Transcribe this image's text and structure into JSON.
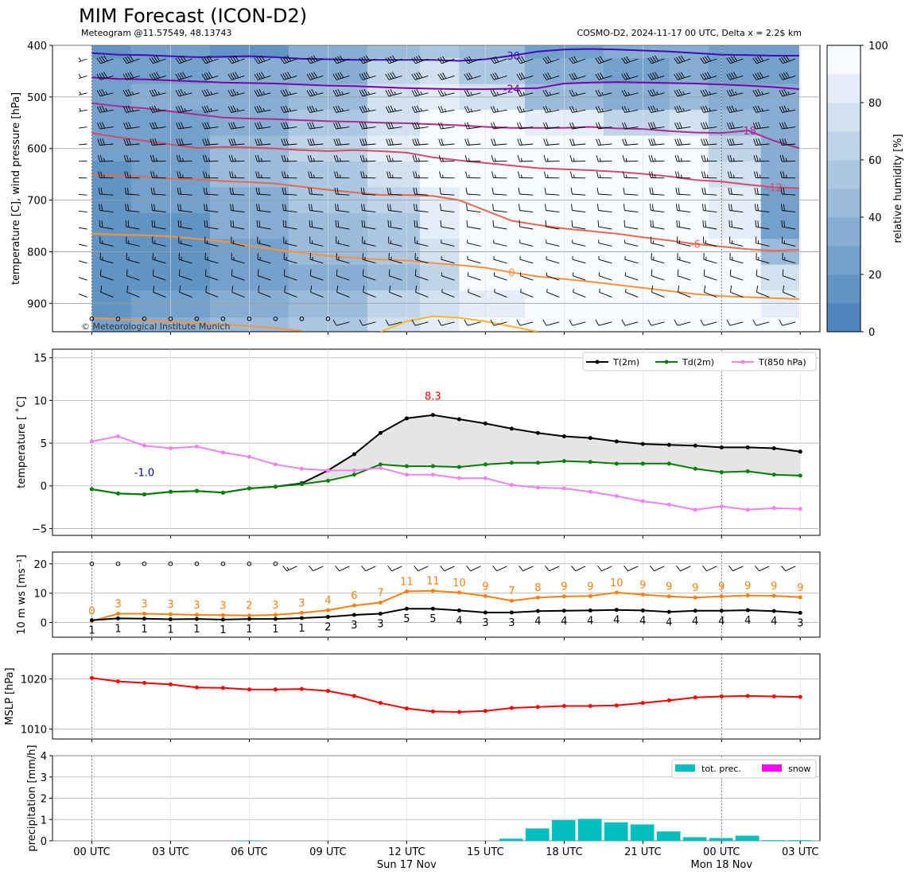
{
  "header": {
    "title": "MIM Forecast (ICON-D2)",
    "subtitle_left": "Meteogram @11.57549, 48.13743",
    "subtitle_right": "COSMO-D2, 2024-11-17 00 UTC, Delta x = 2.2$ km",
    "copyright": "© Meteorological Institute Munich"
  },
  "colors": {
    "rh_dark": "#4f87bc",
    "rh_light": "#f7fbff",
    "t2m": "#000000",
    "td2m": "#008000",
    "t850": "#ee82ee",
    "wind_gust": "#ff7f0e",
    "wind_mean": "#000000",
    "mslp": "#ff0000",
    "tot_prec": "#00bfbf",
    "snow": "#ff00ff",
    "max_label": "#ff0000",
    "min_label": "#0000cd"
  },
  "time_axis": {
    "tick_labels": [
      "00 UTC",
      "03 UTC",
      "06 UTC",
      "09 UTC",
      "12 UTC",
      "15 UTC",
      "18 UTC",
      "21 UTC",
      "00 UTC",
      "03 UTC"
    ],
    "tick_hours": [
      0,
      3,
      6,
      9,
      12,
      15,
      18,
      21,
      24,
      27
    ],
    "day_labels": [
      {
        "hour": 12,
        "text": "Sun 17 Nov"
      },
      {
        "hour": 24,
        "text": "Mon 18 Nov"
      }
    ],
    "range": [
      0,
      27.75
    ]
  },
  "chart_data": [
    {
      "type": "heatmap",
      "id": "cross_section",
      "ylabel": "temperature [C], wind pressure [hPa]",
      "yticks": [
        400,
        500,
        600,
        700,
        800,
        900
      ],
      "ylim": [
        955,
        400
      ],
      "colorbar": {
        "label": "relative humidity [%]",
        "ticks": [
          0,
          20,
          40,
          60,
          80,
          100
        ],
        "range": [
          0,
          100
        ]
      },
      "pressure_levels": [
        400,
        450,
        500,
        550,
        600,
        650,
        700,
        750,
        800,
        850,
        900,
        955
      ],
      "rh_hours": [
        0,
        3,
        6,
        9,
        12,
        13,
        15,
        18,
        21,
        23,
        24,
        27
      ],
      "relative_humidity": [
        [
          15,
          20,
          18,
          30,
          40,
          50,
          40,
          25,
          30,
          35,
          20,
          20
        ],
        [
          20,
          25,
          30,
          35,
          60,
          70,
          55,
          30,
          25,
          30,
          25,
          25
        ],
        [
          25,
          30,
          35,
          45,
          70,
          85,
          75,
          45,
          30,
          40,
          35,
          30
        ],
        [
          20,
          25,
          35,
          50,
          75,
          95,
          90,
          80,
          60,
          75,
          45,
          35
        ],
        [
          20,
          25,
          40,
          60,
          80,
          98,
          95,
          95,
          90,
          95,
          60,
          35
        ],
        [
          15,
          20,
          40,
          55,
          75,
          96,
          98,
          98,
          98,
          98,
          70,
          30
        ],
        [
          15,
          20,
          35,
          50,
          60,
          85,
          98,
          98,
          98,
          98,
          80,
          25
        ],
        [
          10,
          15,
          30,
          45,
          55,
          80,
          98,
          98,
          98,
          98,
          85,
          25
        ],
        [
          10,
          15,
          25,
          40,
          50,
          75,
          95,
          98,
          98,
          98,
          90,
          40
        ],
        [
          10,
          15,
          25,
          35,
          45,
          60,
          90,
          98,
          98,
          98,
          95,
          70
        ],
        [
          15,
          25,
          30,
          40,
          60,
          70,
          85,
          95,
          98,
          98,
          95,
          85
        ],
        [
          25,
          35,
          45,
          55,
          70,
          80,
          90,
          95,
          96,
          95,
          92,
          90
        ]
      ],
      "isotherm_hours": [
        0,
        1,
        2,
        3,
        4,
        5,
        6,
        7,
        8,
        9,
        10,
        11,
        12,
        13,
        14,
        15,
        16,
        17,
        18,
        19,
        20,
        21,
        22,
        23,
        24,
        25,
        26,
        27
      ],
      "isotherms": [
        {
          "label": "-30",
          "color": "#3f0fb7",
          "label_hour": 16,
          "pressure": [
            415,
            418,
            419,
            421,
            423,
            422,
            421,
            423,
            426,
            427,
            428,
            428,
            428,
            428,
            430,
            427,
            420,
            412,
            408,
            407,
            408,
            410,
            412,
            415,
            418,
            419,
            420,
            420
          ]
        },
        {
          "label": "-24",
          "color": "#7e03a8",
          "label_hour": 16,
          "pressure": [
            462,
            465,
            466,
            468,
            470,
            472,
            473,
            474,
            476,
            478,
            479,
            481,
            483,
            484,
            485,
            485,
            484,
            483,
            474,
            472,
            471,
            472,
            473,
            474,
            476,
            478,
            481,
            485
          ]
        },
        {
          "label": "-18",
          "color": "#b02a8f",
          "label_hour": 25,
          "pressure": [
            512,
            518,
            522,
            528,
            534,
            540,
            542,
            543,
            545,
            547,
            548,
            550,
            551,
            553,
            555,
            558,
            560,
            560,
            560,
            558,
            561,
            562,
            566,
            569,
            570,
            565,
            585,
            600
          ]
        },
        {
          "label": "-12",
          "color": "#d44b6d",
          "label_hour": 26,
          "pressure": [
            570,
            578,
            585,
            592,
            599,
            597,
            598,
            600,
            603,
            605,
            603,
            605,
            608,
            617,
            623,
            628,
            633,
            638,
            640,
            642,
            645,
            649,
            654,
            661,
            664,
            670,
            675,
            677
          ]
        },
        {
          "label": "-6",
          "color": "#e8694f",
          "label_hour": 23,
          "pressure": [
            650,
            652,
            655,
            658,
            660,
            663,
            665,
            668,
            674,
            680,
            685,
            690,
            690,
            692,
            700,
            720,
            740,
            748,
            755,
            760,
            765,
            772,
            778,
            785,
            790,
            795,
            798,
            796
          ]
        },
        {
          "label": "0",
          "color": "#f99339",
          "label_hour": 16,
          "pressure": [
            765,
            767,
            768,
            770,
            775,
            780,
            788,
            796,
            802,
            808,
            812,
            815,
            817,
            822,
            826,
            831,
            840,
            848,
            853,
            858,
            864,
            870,
            876,
            882,
            886,
            888,
            890,
            892
          ]
        },
        {
          "label": "",
          "color": "#f99339",
          "label_hour": null,
          "pressure": [
            928,
            931,
            933,
            935,
            938,
            941,
            944,
            948,
            953,
            null,
            null,
            null,
            null,
            null,
            null,
            null,
            null,
            null,
            null,
            null,
            null,
            null,
            null,
            null,
            null,
            null,
            null,
            null
          ]
        },
        {
          "label": "6",
          "color": "#fbb630",
          "label_hour": null,
          "pressure": [
            null,
            null,
            null,
            null,
            null,
            null,
            null,
            null,
            null,
            null,
            null,
            955,
            935,
            925,
            928,
            935,
            945,
            955,
            null,
            null,
            null,
            null,
            null,
            null,
            null,
            null,
            null,
            null
          ]
        }
      ]
    },
    {
      "type": "line",
      "id": "temperature",
      "ylabel": "temperature [$^\\circ$C]",
      "ylabel_display": "temperature [ ˚C]",
      "yticks": [
        -5,
        0,
        5,
        10,
        15
      ],
      "ylim": [
        -5.8,
        16
      ],
      "legend": "top-right",
      "x": [
        0,
        1,
        2,
        3,
        4,
        5,
        6,
        7,
        8,
        9,
        10,
        11,
        12,
        13,
        14,
        15,
        16,
        17,
        18,
        19,
        20,
        21,
        22,
        23,
        24,
        25,
        26,
        27
      ],
      "series": [
        {
          "name": "T(2m)",
          "values": [
            -0.4,
            -0.9,
            -1.0,
            -0.7,
            -0.6,
            -0.8,
            -0.3,
            -0.1,
            0.3,
            1.8,
            3.7,
            6.2,
            7.9,
            8.3,
            7.8,
            7.3,
            6.7,
            6.2,
            5.8,
            5.6,
            5.2,
            4.9,
            4.8,
            4.7,
            4.5,
            4.5,
            4.4,
            4.0
          ]
        },
        {
          "name": "Td(2m)",
          "values": [
            -0.4,
            -0.9,
            -1.0,
            -0.7,
            -0.6,
            -0.8,
            -0.3,
            -0.1,
            0.2,
            0.6,
            1.3,
            2.5,
            2.3,
            2.3,
            2.2,
            2.5,
            2.7,
            2.7,
            2.9,
            2.8,
            2.6,
            2.6,
            2.6,
            2.0,
            1.6,
            1.7,
            1.3,
            1.2
          ]
        },
        {
          "name": "T(850 hPa)",
          "values": [
            5.2,
            5.8,
            4.7,
            4.4,
            4.6,
            3.9,
            3.4,
            2.5,
            2.0,
            1.8,
            1.8,
            2.1,
            1.3,
            1.3,
            0.9,
            0.9,
            0.1,
            -0.2,
            -0.3,
            -0.7,
            -1.2,
            -1.8,
            -2.2,
            -2.8,
            -2.4,
            -2.8,
            -2.6,
            -2.7
          ]
        }
      ],
      "annotations": {
        "max": "8.3",
        "min": "-1.0",
        "max_hour": 13,
        "min_hour": 2
      }
    },
    {
      "type": "line",
      "id": "wind",
      "ylabel": "10 m ws [ms$^{-1}$]",
      "ylabel_display": "10 m ws [ms⁻¹]",
      "yticks": [
        0,
        10,
        20
      ],
      "ylim": [
        -5,
        24
      ],
      "x": [
        0,
        1,
        2,
        3,
        4,
        5,
        6,
        7,
        8,
        9,
        10,
        11,
        12,
        13,
        14,
        15,
        16,
        17,
        18,
        19,
        20,
        21,
        22,
        23,
        24,
        25,
        26,
        27
      ],
      "series": [
        {
          "name": "gust",
          "values": [
            0.5,
            3.0,
            3.0,
            2.8,
            2.6,
            2.5,
            2.4,
            2.6,
            3.3,
            4.2,
            5.8,
            6.8,
            10.6,
            10.8,
            10.2,
            9.0,
            7.4,
            8.5,
            8.9,
            9.0,
            10.2,
            9.5,
            8.9,
            8.5,
            8.9,
            9.2,
            9.1,
            8.6
          ]
        },
        {
          "name": "mean",
          "values": [
            0.8,
            1.4,
            1.3,
            1.1,
            1.2,
            1.0,
            1.2,
            1.2,
            1.5,
            1.9,
            2.6,
            3.0,
            4.7,
            4.7,
            4.1,
            3.4,
            3.4,
            3.9,
            4.0,
            4.1,
            4.3,
            4.1,
            3.6,
            4.0,
            4.0,
            4.2,
            3.9,
            3.3
          ]
        }
      ],
      "gust_labels": [
        "0",
        "3",
        "3",
        "3",
        "3",
        "3",
        "2",
        "3",
        "3",
        "4",
        "6",
        "7",
        "11",
        "11",
        "10",
        "9",
        "7",
        "8",
        "9",
        "9",
        "10",
        "9",
        "9",
        "9",
        "9",
        "9",
        "9",
        "9"
      ],
      "mean_labels": [
        "1",
        "1",
        "1",
        "1",
        "1",
        "1",
        "1",
        "1",
        "1",
        "2",
        "3",
        "3",
        "5",
        "5",
        "4",
        "3",
        "3",
        "4",
        "4",
        "4",
        "4",
        "4",
        "4",
        "4",
        "4",
        "4",
        "4",
        "3"
      ]
    },
    {
      "type": "line",
      "id": "mslp",
      "ylabel": "MSLP [hPa]",
      "yticks": [
        1010,
        1020
      ],
      "ylim": [
        1008,
        1025
      ],
      "x": [
        0,
        1,
        2,
        3,
        4,
        5,
        6,
        7,
        8,
        9,
        10,
        11,
        12,
        13,
        14,
        15,
        16,
        17,
        18,
        19,
        20,
        21,
        22,
        23,
        24,
        25,
        26,
        27
      ],
      "series": [
        {
          "name": "MSLP",
          "values": [
            1020.2,
            1019.5,
            1019.2,
            1018.9,
            1018.3,
            1018.2,
            1017.9,
            1017.9,
            1018.0,
            1017.6,
            1016.6,
            1015.2,
            1014.1,
            1013.5,
            1013.4,
            1013.6,
            1014.2,
            1014.4,
            1014.6,
            1014.6,
            1014.7,
            1015.2,
            1015.7,
            1016.3,
            1016.5,
            1016.6,
            1016.5,
            1016.4
          ]
        }
      ]
    },
    {
      "type": "bar",
      "id": "precipitation",
      "ylabel": "precipitation [mm/h]",
      "yticks": [
        0,
        1,
        2,
        3,
        4
      ],
      "ylim": [
        0,
        4
      ],
      "legend": "top-right",
      "x": [
        0,
        1,
        2,
        3,
        4,
        5,
        6,
        7,
        8,
        9,
        10,
        11,
        12,
        13,
        14,
        15,
        16,
        17,
        18,
        19,
        20,
        21,
        22,
        23,
        24,
        25,
        26,
        27
      ],
      "series": [
        {
          "name": "tot. prec.",
          "values": [
            0,
            0,
            0,
            0,
            0,
            0,
            0.02,
            0,
            0,
            0,
            0,
            0,
            0,
            0,
            0,
            0,
            0.1,
            0.58,
            0.97,
            1.03,
            0.87,
            0.77,
            0.44,
            0.17,
            0.13,
            0.24,
            0.03,
            0.03
          ]
        },
        {
          "name": "snow",
          "values": [
            0,
            0,
            0,
            0,
            0,
            0,
            0,
            0,
            0,
            0,
            0,
            0,
            0,
            0,
            0,
            0,
            0,
            0,
            0,
            0,
            0,
            0,
            0,
            0,
            0,
            0,
            0,
            0
          ]
        }
      ]
    }
  ]
}
